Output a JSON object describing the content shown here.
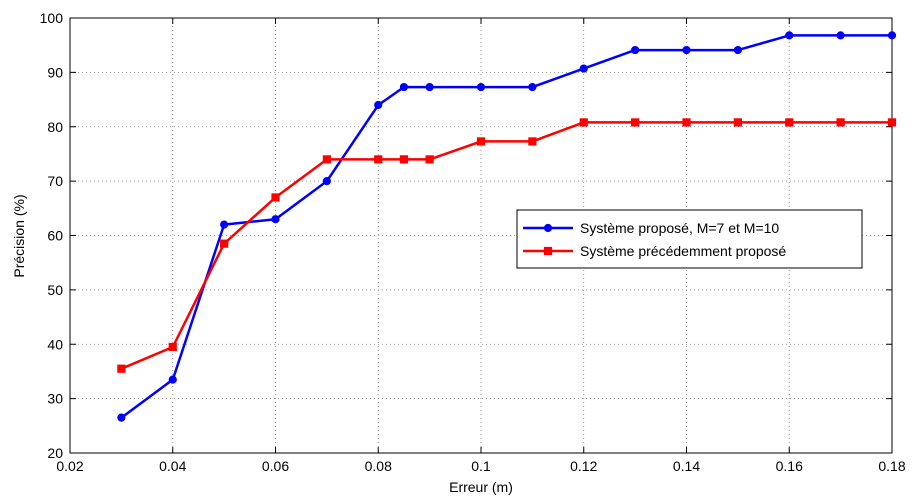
{
  "chart_data": {
    "type": "line",
    "title": "",
    "xlabel": "Erreur (m)",
    "ylabel": "Précision (%)",
    "xlim": [
      0.02,
      0.18
    ],
    "ylim": [
      20,
      100
    ],
    "xticks": [
      "0.02",
      "0.04",
      "0.06",
      "0.08",
      "0.1",
      "0.12",
      "0.14",
      "0.16",
      "0.18"
    ],
    "yticks": [
      "20",
      "30",
      "40",
      "50",
      "60",
      "70",
      "80",
      "90",
      "100"
    ],
    "grid": true,
    "legend_position": "center-right",
    "series": [
      {
        "name": "Système proposé, M=7 et M=10",
        "color": "#0000ff",
        "marker": "circle",
        "x": [
          0.03,
          0.04,
          0.05,
          0.06,
          0.07,
          0.08,
          0.085,
          0.09,
          0.1,
          0.11,
          0.12,
          0.13,
          0.14,
          0.15,
          0.16,
          0.17,
          0.18
        ],
        "y": [
          26.5,
          33.5,
          62,
          63,
          70,
          84,
          87.3,
          87.3,
          87.3,
          87.3,
          90.7,
          94.1,
          94.1,
          94.1,
          96.8,
          96.8,
          96.8
        ]
      },
      {
        "name": "Système précédemment proposé",
        "color": "#ff0000",
        "marker": "square",
        "x": [
          0.03,
          0.04,
          0.05,
          0.06,
          0.07,
          0.08,
          0.085,
          0.09,
          0.1,
          0.11,
          0.12,
          0.13,
          0.14,
          0.15,
          0.16,
          0.17,
          0.18
        ],
        "y": [
          35.5,
          39.5,
          58.5,
          67,
          74,
          74,
          74,
          74,
          77.3,
          77.3,
          80.8,
          80.8,
          80.8,
          80.8,
          80.8,
          80.8,
          80.8
        ]
      }
    ]
  }
}
